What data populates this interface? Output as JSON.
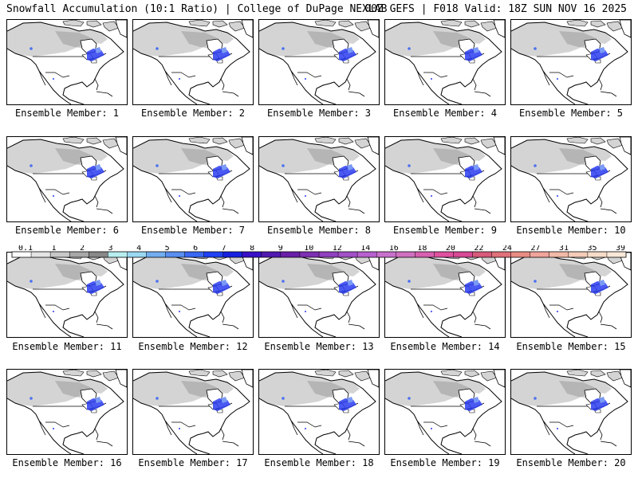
{
  "header": {
    "title_left": "Snowfall Accumulation (10:1 Ratio) | College of DuPage NEXLAB",
    "title_right": "00Z GEFS | F018 Valid: 18Z SUN NOV 16 2025"
  },
  "members": [
    "Ensemble Member: 1",
    "Ensemble Member: 2",
    "Ensemble Member: 3",
    "Ensemble Member: 4",
    "Ensemble Member: 5",
    "Ensemble Member: 6",
    "Ensemble Member: 7",
    "Ensemble Member: 8",
    "Ensemble Member: 9",
    "Ensemble Member: 10",
    "Ensemble Member: 11",
    "Ensemble Member: 12",
    "Ensemble Member: 13",
    "Ensemble Member: 14",
    "Ensemble Member: 15",
    "Ensemble Member: 16",
    "Ensemble Member: 17",
    "Ensemble Member: 18",
    "Ensemble Member: 19",
    "Ensemble Member: 20"
  ],
  "colorbar": {
    "ticks": [
      "0.1",
      "1",
      "2",
      "3",
      "4",
      "5",
      "6",
      "7",
      "8",
      "9",
      "10",
      "12",
      "14",
      "16",
      "18",
      "20",
      "22",
      "24",
      "27",
      "31",
      "35",
      "39"
    ],
    "colors": [
      "#ffffff",
      "#e4e4e4",
      "#c8c8c8",
      "#a8a8a8",
      "#888888",
      "#b8eef0",
      "#9ad8f2",
      "#72aef0",
      "#5a8ef0",
      "#3a68f4",
      "#2040f4",
      "#1820e0",
      "#3a10c8",
      "#5018b0",
      "#6a1ea8",
      "#7e30b4",
      "#9040c0",
      "#a250c8",
      "#b860d0",
      "#c870cc",
      "#d070c0",
      "#d860b0",
      "#e050a0",
      "#d84894",
      "#d85a7a",
      "#e0707a",
      "#e88c84",
      "#f0a49a",
      "#f2baa8",
      "#f4ccb8",
      "#f6dcc8",
      "#f8e8d8"
    ]
  },
  "colors": {
    "land_snow": "#d4d4d4",
    "snow_dark": "#9a9a9a",
    "snow_blue": "#2a3cf0",
    "line": "#000000"
  }
}
